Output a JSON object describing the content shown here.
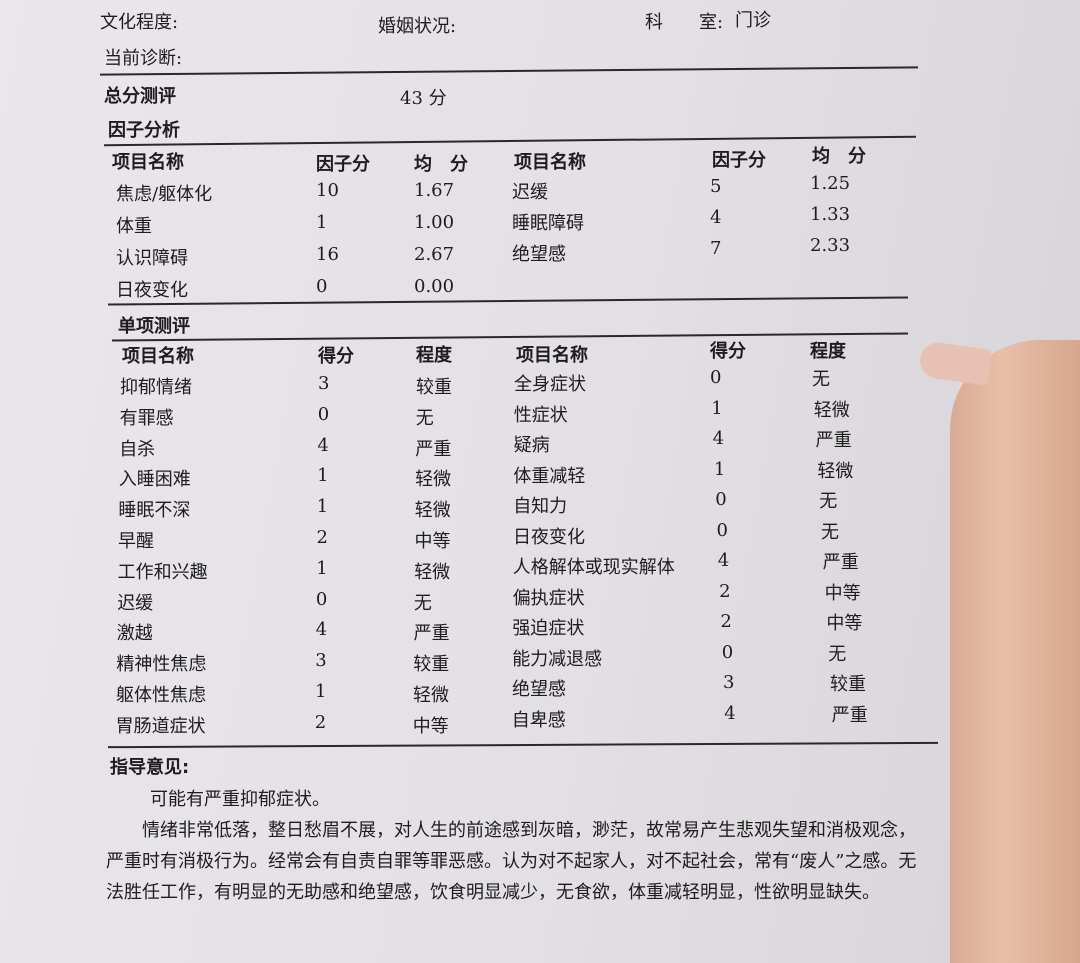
{
  "header": {
    "education_label": "文化程度:",
    "marital_label": "婚姻状况:",
    "department_label": "科　　室:",
    "department_value": "门诊",
    "diagnosis_label": "当前诊断:"
  },
  "total": {
    "label": "总分测评",
    "value": "43 分"
  },
  "factor": {
    "title": "因子分析",
    "headers": {
      "name": "项目名称",
      "score": "因子分",
      "avg": "均　分"
    },
    "left": [
      {
        "name": "焦虑/躯体化",
        "score": "10",
        "avg": "1.67"
      },
      {
        "name": "体重",
        "score": "1",
        "avg": "1.00"
      },
      {
        "name": "认识障碍",
        "score": "16",
        "avg": "2.67"
      },
      {
        "name": "日夜变化",
        "score": "0",
        "avg": "0.00"
      }
    ],
    "right": [
      {
        "name": "迟缓",
        "score": "5",
        "avg": "1.25"
      },
      {
        "name": "睡眠障碍",
        "score": "4",
        "avg": "1.33"
      },
      {
        "name": "绝望感",
        "score": "7",
        "avg": "2.33"
      }
    ]
  },
  "single": {
    "title": "单项测评",
    "headers": {
      "name": "项目名称",
      "score": "得分",
      "degree": "程度"
    },
    "left": [
      {
        "name": "抑郁情绪",
        "score": "3",
        "degree": "较重"
      },
      {
        "name": "有罪感",
        "score": "0",
        "degree": "无"
      },
      {
        "name": "自杀",
        "score": "4",
        "degree": "严重"
      },
      {
        "name": "入睡困难",
        "score": "1",
        "degree": "轻微"
      },
      {
        "name": "睡眠不深",
        "score": "1",
        "degree": "轻微"
      },
      {
        "name": "早醒",
        "score": "2",
        "degree": "中等"
      },
      {
        "name": "工作和兴趣",
        "score": "1",
        "degree": "轻微"
      },
      {
        "name": "迟缓",
        "score": "0",
        "degree": "无"
      },
      {
        "name": "激越",
        "score": "4",
        "degree": "严重"
      },
      {
        "name": "精神性焦虑",
        "score": "3",
        "degree": "较重"
      },
      {
        "name": "躯体性焦虑",
        "score": "1",
        "degree": "轻微"
      },
      {
        "name": "胃肠道症状",
        "score": "2",
        "degree": "中等"
      }
    ],
    "right": [
      {
        "name": "全身症状",
        "score": "0",
        "degree": "无"
      },
      {
        "name": "性症状",
        "score": "1",
        "degree": "轻微"
      },
      {
        "name": "疑病",
        "score": "4",
        "degree": "严重"
      },
      {
        "name": "体重减轻",
        "score": "1",
        "degree": "轻微"
      },
      {
        "name": "自知力",
        "score": "0",
        "degree": "无"
      },
      {
        "name": "日夜变化",
        "score": "0",
        "degree": "无"
      },
      {
        "name": "人格解体或现实解体",
        "score": "4",
        "degree": "严重"
      },
      {
        "name": "偏执症状",
        "score": "2",
        "degree": "中等"
      },
      {
        "name": "强迫症状",
        "score": "2",
        "degree": "中等"
      },
      {
        "name": "能力减退感",
        "score": "0",
        "degree": "无"
      },
      {
        "name": "绝望感",
        "score": "3",
        "degree": "较重"
      },
      {
        "name": "自卑感",
        "score": "4",
        "degree": "严重"
      }
    ]
  },
  "guidance": {
    "title": "指导意见:",
    "summary": "可能有严重抑郁症状。",
    "detail": "情绪非常低落，整日愁眉不展，对人生的前途感到灰暗，渺茫，故常易产生悲观失望和消极观念，严重时有消极行为。经常会有自责自罪等罪恶感。认为对不起家人，对不起社会，常有“废人”之感。无法胜任工作，有明显的无助感和绝望感，饮食明显减少，无食欲，体重减轻明显，性欲明显缺失。"
  }
}
